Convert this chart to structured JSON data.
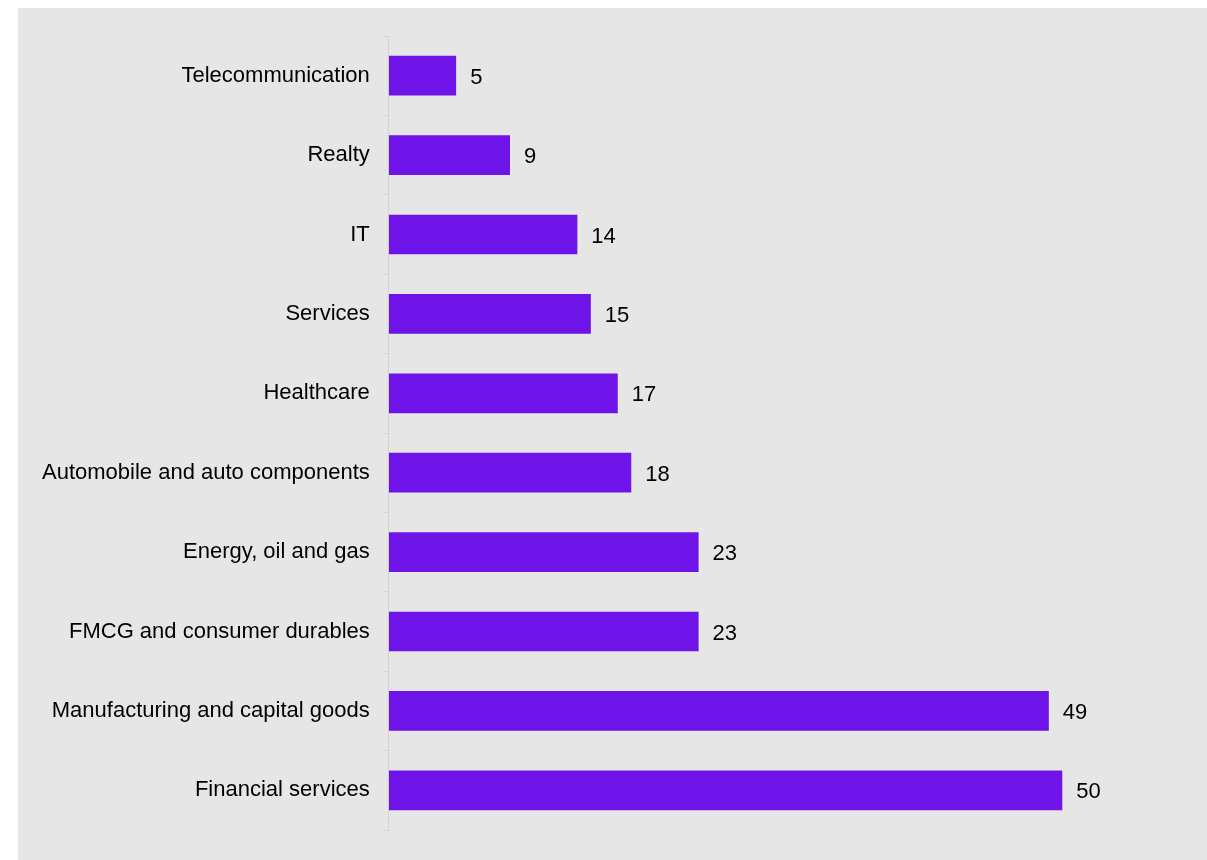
{
  "chart_data": {
    "type": "bar",
    "orientation": "horizontal",
    "categories": [
      "Telecommunication",
      "Realty",
      "IT",
      "Services",
      "Healthcare",
      "Automobile and auto components",
      "Energy, oil and gas",
      "FMCG and consumer durables",
      "Manufacturing and capital goods",
      "Financial services"
    ],
    "values": [
      5,
      9,
      14,
      15,
      17,
      18,
      23,
      23,
      49,
      50
    ],
    "color": "#6f14e8",
    "data_labels": true,
    "grid": false,
    "legend": false,
    "tick_labels": "y"
  }
}
